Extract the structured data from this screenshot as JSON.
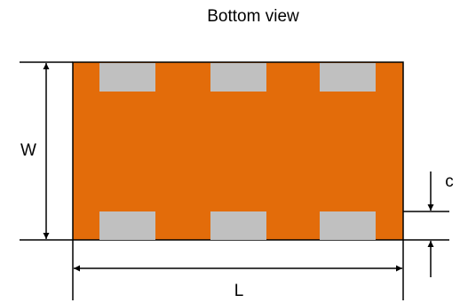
{
  "title": "Bottom view",
  "labels": {
    "width": "W",
    "length": "L",
    "pad_height": "c"
  },
  "colors": {
    "body": "#E36C0A",
    "pad": "#C0C0C0",
    "line": "#000000",
    "background": "#FFFFFF"
  },
  "pads": {
    "top_count": 3,
    "bottom_count": 3
  }
}
